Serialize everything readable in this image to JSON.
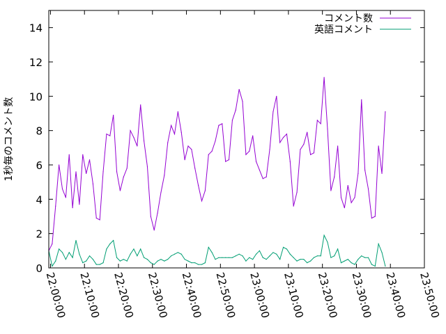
{
  "chart_data": {
    "type": "line",
    "title": "",
    "xlabel": "",
    "ylabel": "1秒毎のコメント数",
    "xlim": [
      "21:59:30",
      "23:50:00"
    ],
    "ylim": [
      0,
      15
    ],
    "grid": false,
    "legend_position": "top-right",
    "y_ticks": [
      "0",
      "2",
      "4",
      "6",
      "8",
      "10",
      "12",
      "14"
    ],
    "x_ticks": [
      "22:00:00",
      "22:10:00",
      "22:20:00",
      "22:30:00",
      "22:40:00",
      "22:50:00",
      "23:00:00",
      "23:10:00",
      "23:20:00",
      "23:30:00",
      "23:40:00",
      "23:50:00"
    ],
    "x_interval_minutes": 1,
    "x_start": "21:59:30",
    "series": [
      {
        "name": "コメント数",
        "color": "#9400d3",
        "values": [
          1.0,
          1.4,
          3.6,
          6.0,
          4.6,
          4.1,
          6.6,
          3.5,
          5.6,
          3.7,
          6.6,
          5.5,
          6.3,
          4.9,
          2.9,
          2.8,
          5.6,
          7.8,
          7.7,
          8.9,
          5.6,
          4.5,
          5.3,
          5.8,
          8.0,
          7.6,
          7.1,
          9.5,
          7.4,
          5.9,
          3.0,
          2.2,
          3.2,
          4.4,
          5.4,
          7.3,
          8.3,
          7.8,
          9.1,
          7.9,
          6.3,
          7.1,
          6.9,
          5.8,
          4.8,
          3.9,
          4.5,
          6.6,
          6.8,
          7.4,
          8.3,
          8.4,
          6.2,
          6.3,
          8.6,
          9.2,
          10.4,
          9.7,
          6.6,
          6.8,
          7.7,
          6.2,
          5.7,
          5.2,
          5.3,
          6.9,
          9.1,
          10.0,
          7.3,
          7.6,
          7.8,
          6.2,
          3.6,
          4.4,
          6.9,
          7.2,
          7.9,
          6.6,
          6.7,
          8.6,
          8.4,
          11.1,
          8.1,
          4.5,
          5.3,
          7.1,
          4.1,
          3.5,
          4.8,
          3.8,
          4.1,
          5.5,
          9.8,
          5.7,
          4.6,
          2.9,
          3.0,
          7.1,
          5.5,
          9.1
        ]
      },
      {
        "name": "英語コメント",
        "color": "#009e73",
        "values": [
          1.0,
          0.1,
          0.4,
          1.1,
          0.9,
          0.5,
          0.9,
          0.6,
          1.6,
          0.8,
          0.3,
          0.4,
          0.7,
          0.5,
          0.2,
          0.2,
          0.3,
          1.1,
          1.4,
          1.6,
          0.6,
          0.4,
          0.5,
          0.4,
          0.8,
          1.1,
          0.7,
          1.1,
          0.6,
          0.5,
          0.3,
          0.2,
          0.4,
          0.5,
          0.4,
          0.5,
          0.7,
          0.8,
          0.9,
          0.8,
          0.5,
          0.4,
          0.3,
          0.3,
          0.2,
          0.2,
          0.3,
          1.2,
          0.9,
          0.5,
          0.6,
          0.6,
          0.6,
          0.6,
          0.6,
          0.7,
          0.8,
          0.7,
          0.4,
          0.6,
          0.5,
          0.8,
          1.0,
          0.6,
          0.5,
          0.7,
          0.9,
          0.8,
          0.5,
          1.2,
          1.1,
          0.8,
          0.6,
          0.4,
          0.5,
          0.5,
          0.3,
          0.4,
          0.6,
          0.7,
          0.7,
          1.9,
          1.5,
          0.6,
          0.7,
          1.1,
          0.3,
          0.4,
          0.5,
          0.3,
          0.2,
          0.5,
          0.7,
          0.6,
          0.6,
          0.2,
          0.1,
          1.4,
          0.9,
          0.1
        ]
      }
    ]
  }
}
